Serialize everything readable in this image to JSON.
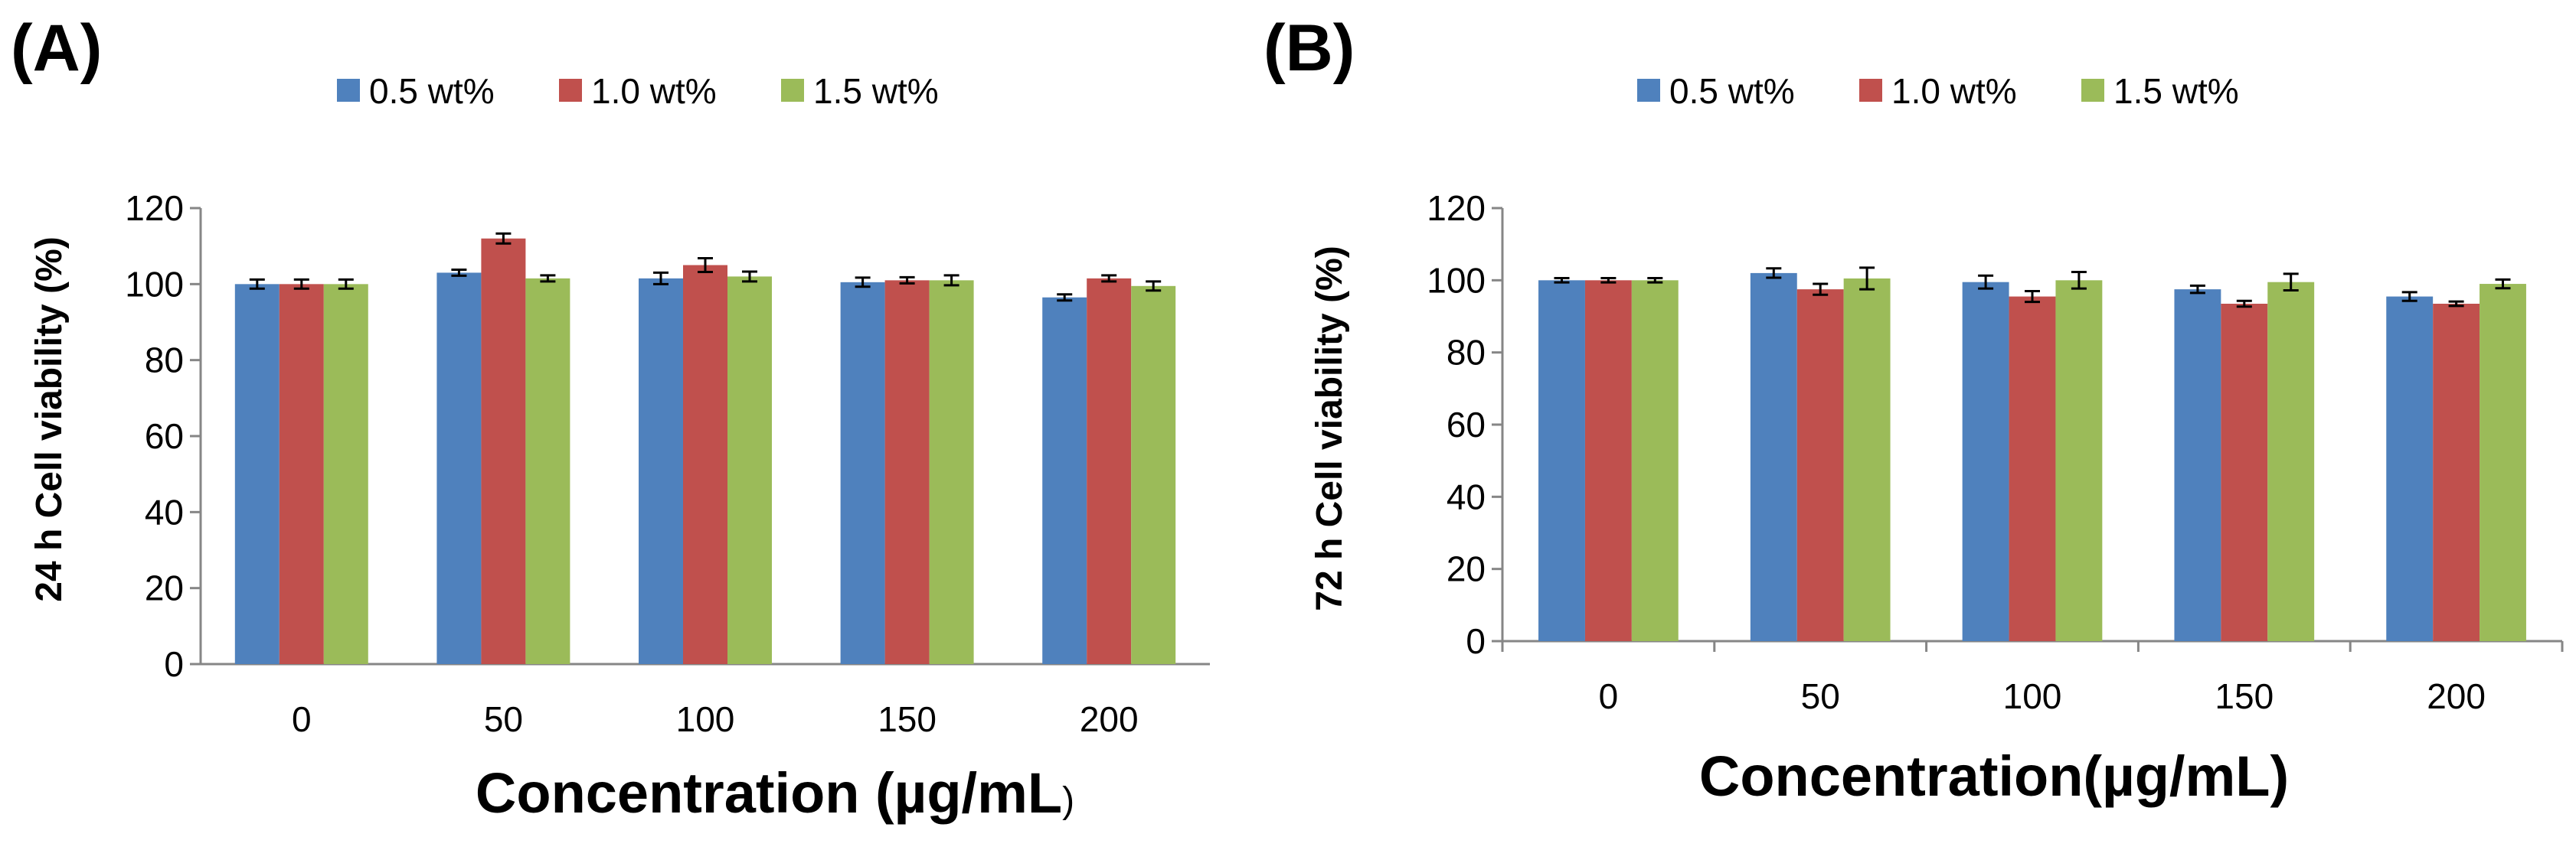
{
  "colors": {
    "series": [
      "#4F81BD",
      "#C0504D",
      "#9BBB59"
    ],
    "axis": "#868686",
    "error_bar": "#000000"
  },
  "chart_data": [
    {
      "panel": "(A)",
      "type": "bar",
      "xlabel_main": "Concentration (µg/mL",
      "xlabel_tail": ")",
      "ylabel": "24 h Cell viability (%)",
      "categories": [
        "0",
        "50",
        "100",
        "150",
        "200"
      ],
      "ylim": [
        0,
        120
      ],
      "yticks": [
        0,
        20,
        40,
        60,
        80,
        100,
        120
      ],
      "x_axis_ticks": false,
      "legend_position": "top",
      "series": [
        {
          "name": "0.5 wt%",
          "values": [
            100,
            103,
            101.5,
            100.5,
            96.5
          ],
          "errors": [
            1.2,
            0.8,
            1.5,
            1.2,
            0.8
          ]
        },
        {
          "name": "1.0 wt%",
          "values": [
            100,
            112,
            105,
            101,
            101.5
          ],
          "errors": [
            1.2,
            1.3,
            1.8,
            0.8,
            0.8
          ]
        },
        {
          "name": "1.5 wt%",
          "values": [
            100,
            101.5,
            102,
            101,
            99.5
          ],
          "errors": [
            1.2,
            0.8,
            1.3,
            1.3,
            1.2
          ]
        }
      ]
    },
    {
      "panel": "(B)",
      "type": "bar",
      "xlabel_main": "Concentration(µg/mL)",
      "xlabel_tail": "",
      "ylabel": "72 h Cell viability (%)",
      "categories": [
        "0",
        "50",
        "100",
        "150",
        "200"
      ],
      "ylim": [
        0,
        120
      ],
      "yticks": [
        0,
        20,
        40,
        60,
        80,
        100,
        120
      ],
      "x_axis_ticks": true,
      "legend_position": "top",
      "series": [
        {
          "name": "0.5 wt%",
          "values": [
            100,
            102,
            99.5,
            97.5,
            95.5
          ],
          "errors": [
            0.6,
            1.3,
            1.8,
            1.0,
            1.2
          ]
        },
        {
          "name": "1.0 wt%",
          "values": [
            100,
            97.5,
            95.5,
            93.5,
            93.5
          ],
          "errors": [
            0.6,
            1.5,
            1.5,
            0.8,
            0.6
          ]
        },
        {
          "name": "1.5 wt%",
          "values": [
            100,
            100.5,
            100,
            99.5,
            99
          ],
          "errors": [
            0.6,
            3.0,
            2.3,
            2.3,
            1.2
          ]
        }
      ]
    }
  ]
}
